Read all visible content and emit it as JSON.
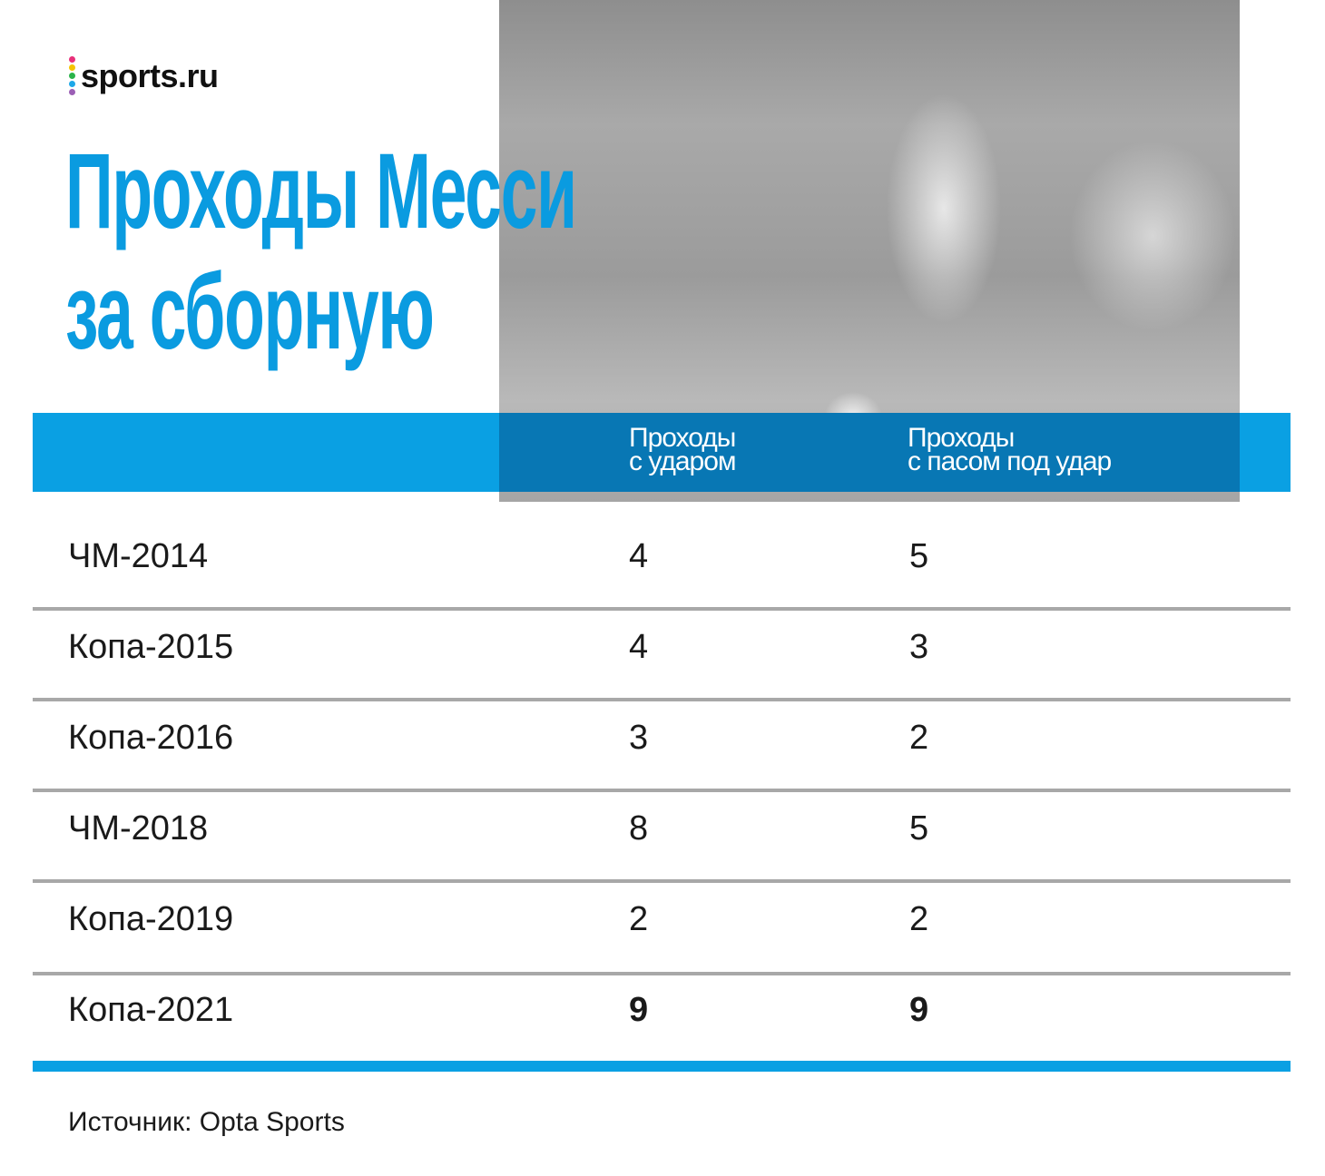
{
  "logo": {
    "text": "sports.ru",
    "dot_colors": [
      "#e8307a",
      "#f5c400",
      "#2bb34a",
      "#1ea8e8",
      "#9b5fb5"
    ]
  },
  "title": {
    "line1": "Проходы Месси",
    "line2": "за сборную"
  },
  "colors": {
    "accent": "#0aa0e3",
    "title": "#0a9be0",
    "separator": "#a8a8a8"
  },
  "chart_data": {
    "type": "table",
    "title": "Проходы Месси за сборную",
    "columns": [
      "",
      "Проходы с ударом",
      "Проходы с пасом под удар"
    ],
    "header": {
      "col1_line1": "Проходы",
      "col1_line2": "с ударом",
      "col2_line1": "Проходы",
      "col2_line2": "с пасом под удар"
    },
    "rows": [
      {
        "label": "ЧМ-2014",
        "shots": "4",
        "passes": "5",
        "bold": false
      },
      {
        "label": "Копа-2015",
        "shots": "4",
        "passes": "3",
        "bold": false
      },
      {
        "label": "Копа-2016",
        "shots": "3",
        "passes": "2",
        "bold": false
      },
      {
        "label": "ЧМ-2018",
        "shots": "8",
        "passes": "5",
        "bold": false
      },
      {
        "label": "Копа-2019",
        "shots": "2",
        "passes": "2",
        "bold": false
      },
      {
        "label": "Копа-2021",
        "shots": "9",
        "passes": "9",
        "bold": true
      }
    ]
  },
  "source": "Источник: Opta Sports"
}
